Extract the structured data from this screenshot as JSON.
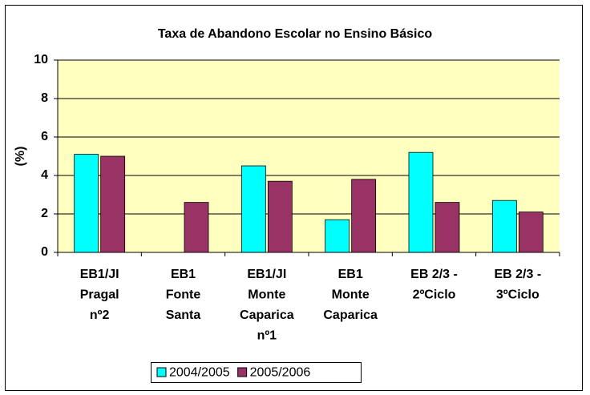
{
  "chart_data": {
    "type": "bar",
    "title": "Taxa de Abandono Escolar no Ensino Básico",
    "y_label": "(%)",
    "categories": [
      "EB1/JI\nPragal\nnº2",
      "EB1\nFonte\nSanta",
      "EB1/JI\nMonte\nCaparica\nnº1",
      "EB1\nMonte\nCaparica",
      "EB 2/3 -\n2ºCiclo",
      "EB 2/3 -\n3ºCiclo"
    ],
    "series": [
      {
        "name": "2004/2005",
        "color": "#00ffff",
        "values": [
          5.1,
          0,
          4.5,
          1.7,
          5.2,
          2.7
        ]
      },
      {
        "name": "2005/2006",
        "color": "#993366",
        "values": [
          5.0,
          2.6,
          3.7,
          3.8,
          2.6,
          2.1
        ]
      }
    ],
    "ylim": [
      0,
      10
    ],
    "yticks": [
      0,
      2,
      4,
      6,
      8,
      10
    ],
    "grid": true,
    "legend": "bottom"
  }
}
